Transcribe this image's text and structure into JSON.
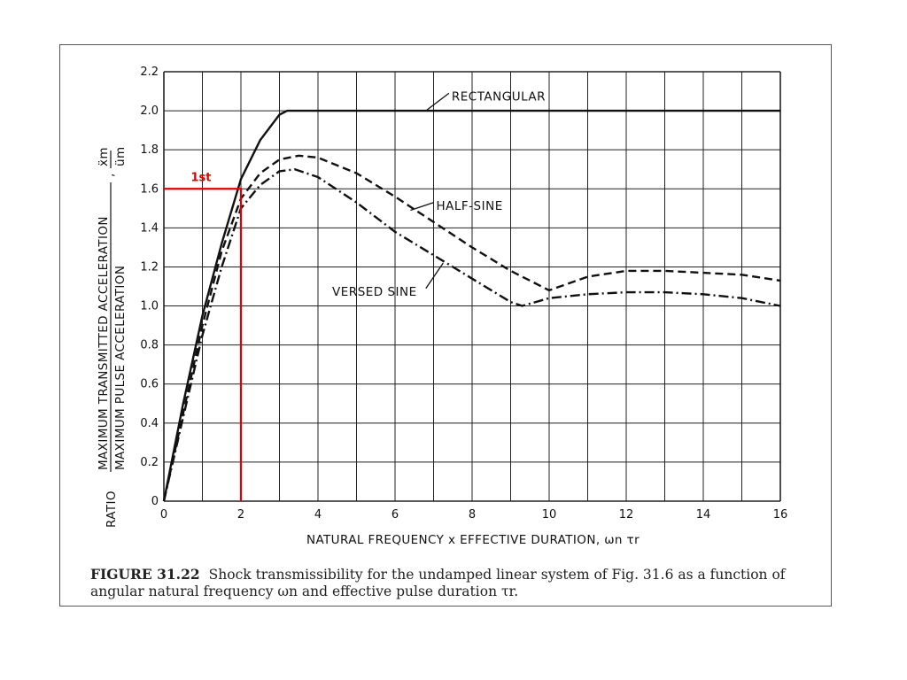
{
  "caption": {
    "label": "FIGURE 31.22",
    "text": "Shock transmissibility for the undamped linear system of Fig. 31.6 as a function of angular natural frequency ωn and effective pulse duration τr."
  },
  "chart_data": {
    "type": "line",
    "title": "",
    "xlabel": "NATURAL FREQUENCY x EFFECTIVE DURATION, ωn τr",
    "ylabel_prefix": "RATIO",
    "ylabel_numerator": "MAXIMUM TRANSMITTED ACCELERATION",
    "ylabel_denominator": "MAXIMUM PULSE ACCELERATION",
    "ylabel_symbol_num": "ẍm",
    "ylabel_symbol_den": "üm",
    "xlim": [
      0,
      16
    ],
    "ylim": [
      0,
      2.2
    ],
    "xticks": [
      0,
      2,
      4,
      6,
      8,
      10,
      12,
      14,
      16
    ],
    "yticks": [
      0,
      0.2,
      0.4,
      0.6,
      0.8,
      1.0,
      1.2,
      1.4,
      1.6,
      1.8,
      2.0,
      2.2
    ],
    "ytick_labels": [
      "0",
      "0.2",
      "0.4",
      "0.6",
      "0.8",
      "1.0",
      "1.2",
      "1.4",
      "1.6",
      "1.8",
      "2.0",
      "2.2"
    ],
    "grid": true,
    "series": [
      {
        "name": "RECTANGULAR",
        "style": "solid",
        "points": [
          [
            0,
            0
          ],
          [
            0.5,
            0.5
          ],
          [
            1,
            0.95
          ],
          [
            1.5,
            1.32
          ],
          [
            2,
            1.65
          ],
          [
            2.5,
            1.85
          ],
          [
            3,
            1.98
          ],
          [
            3.2,
            2.0
          ],
          [
            16,
            2.0
          ]
        ]
      },
      {
        "name": "HALF-SINE",
        "style": "dashed",
        "points": [
          [
            0,
            0
          ],
          [
            0.5,
            0.45
          ],
          [
            1,
            0.9
          ],
          [
            1.5,
            1.28
          ],
          [
            2,
            1.55
          ],
          [
            2.5,
            1.68
          ],
          [
            3,
            1.75
          ],
          [
            3.5,
            1.77
          ],
          [
            4,
            1.76
          ],
          [
            5,
            1.68
          ],
          [
            6,
            1.56
          ],
          [
            7,
            1.43
          ],
          [
            8,
            1.3
          ],
          [
            9,
            1.18
          ],
          [
            10,
            1.08
          ],
          [
            11,
            1.15
          ],
          [
            12,
            1.18
          ],
          [
            13,
            1.18
          ],
          [
            14,
            1.17
          ],
          [
            15,
            1.16
          ],
          [
            16,
            1.13
          ]
        ]
      },
      {
        "name": "VERSED SINE",
        "style": "dashdot",
        "points": [
          [
            0,
            0
          ],
          [
            0.5,
            0.43
          ],
          [
            1,
            0.85
          ],
          [
            1.5,
            1.2
          ],
          [
            2,
            1.5
          ],
          [
            2.5,
            1.62
          ],
          [
            3,
            1.69
          ],
          [
            3.4,
            1.7
          ],
          [
            4,
            1.66
          ],
          [
            5,
            1.53
          ],
          [
            6,
            1.38
          ],
          [
            7,
            1.26
          ],
          [
            8,
            1.14
          ],
          [
            9,
            1.02
          ],
          [
            9.3,
            1.0
          ],
          [
            10,
            1.04
          ],
          [
            11,
            1.06
          ],
          [
            12,
            1.07
          ],
          [
            13,
            1.07
          ],
          [
            14,
            1.06
          ],
          [
            15,
            1.04
          ],
          [
            16,
            1.0
          ]
        ]
      }
    ],
    "annotation": {
      "text": "1st",
      "x": 2,
      "y": 1.6,
      "color": "#e00000"
    }
  }
}
